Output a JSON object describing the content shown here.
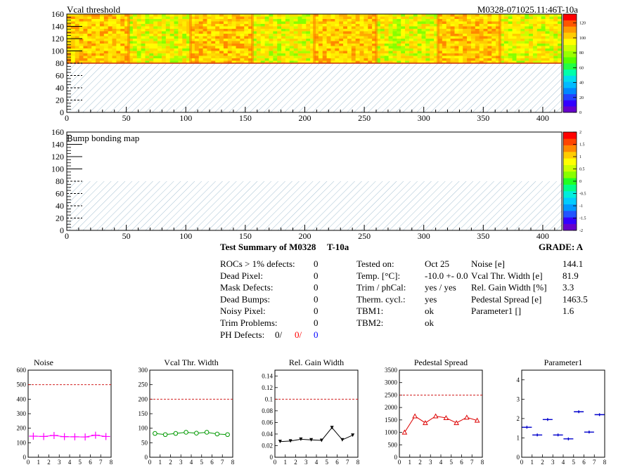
{
  "header": {
    "title": "Vcal threshold",
    "module_id": "M0328-071025.11:46T-10a"
  },
  "maps": [
    {
      "title": "Vcal threshold",
      "x_ticks": [
        "0",
        "50",
        "100",
        "150",
        "200",
        "250",
        "300",
        "350",
        "400"
      ],
      "y_ticks": [
        "0",
        "20",
        "40",
        "60",
        "80",
        "100",
        "120",
        "140",
        "160"
      ],
      "palette_labels": [
        "0",
        "20",
        "40",
        "60",
        "80",
        "100",
        "120"
      ]
    },
    {
      "title": "Bump bonding map",
      "x_ticks": [
        "0",
        "50",
        "100",
        "150",
        "200",
        "250",
        "300",
        "350",
        "400"
      ],
      "y_ticks": [
        "0",
        "20",
        "40",
        "60",
        "80",
        "100",
        "120",
        "140",
        "160"
      ],
      "palette_labels": [
        "-2",
        "-1.5",
        "-1",
        "-0.5",
        "0",
        "0.5",
        "1",
        "1.5",
        "2"
      ]
    }
  ],
  "summary": {
    "title": "Test Summary of M0328",
    "temp_tag": "T-10a",
    "grade_label": "GRADE:  A",
    "defects": [
      {
        "label": "ROCs > 1% defects:",
        "value": "0"
      },
      {
        "label": "Dead Pixel:",
        "value": "0"
      },
      {
        "label": "Mask Defects:",
        "value": "0"
      },
      {
        "label": "Dead Bumps:",
        "value": "0"
      },
      {
        "label": "Noisy Pixel:",
        "value": "0"
      },
      {
        "label": "Trim Problems:",
        "value": "0"
      }
    ],
    "ph_defects": {
      "label": "PH Defects:",
      "v1": "0/",
      "v2": "0/",
      "v3": "0"
    },
    "conditions": [
      {
        "label": "Tested on:",
        "value": "Oct 25"
      },
      {
        "label": "Temp. [°C]:",
        "value": "-10.0 +- 0.0"
      },
      {
        "label": "Trim / phCal:",
        "value": "yes / yes"
      },
      {
        "label": "Therm. cycl.:",
        "value": "yes"
      },
      {
        "label": "TBM1:",
        "value": "ok"
      },
      {
        "label": "TBM2:",
        "value": "ok"
      }
    ],
    "results": [
      {
        "label": "Noise [e]",
        "value": "144.1"
      },
      {
        "label": "Vcal Thr. Width [e]",
        "value": "81.9"
      },
      {
        "label": "Rel. Gain Width [%]",
        "value": "3.3"
      },
      {
        "label": "Pedestal Spread [e]",
        "value": "1463.5"
      },
      {
        "label": "Parameter1 []",
        "value": "1.6"
      }
    ]
  },
  "chart_data": [
    {
      "type": "line",
      "title": "Noise",
      "x": [
        0.5,
        1.5,
        2.5,
        3.5,
        4.5,
        5.5,
        6.5,
        7.5
      ],
      "values": [
        145,
        143,
        150,
        142,
        141,
        140,
        152,
        143
      ],
      "ylim": [
        0,
        600
      ],
      "threshold": 500,
      "y_ticks": [
        "0",
        "100",
        "200",
        "300",
        "400",
        "500",
        "600"
      ],
      "x_ticks": [
        "0",
        "1",
        "2",
        "3",
        "4",
        "5",
        "6",
        "7",
        "8"
      ],
      "color": "#ff00ff",
      "marker": "plus"
    },
    {
      "type": "line",
      "title": "Vcal Thr. Width",
      "x": [
        0.5,
        1.5,
        2.5,
        3.5,
        4.5,
        5.5,
        6.5,
        7.5
      ],
      "values": [
        82,
        78,
        82,
        86,
        83,
        86,
        80,
        78
      ],
      "ylim": [
        0,
        300
      ],
      "threshold": 200,
      "y_ticks": [
        "0",
        "50",
        "100",
        "150",
        "200",
        "250",
        "300"
      ],
      "x_ticks": [
        "0",
        "1",
        "2",
        "3",
        "4",
        "5",
        "6",
        "7",
        "8"
      ],
      "color": "#009900",
      "marker": "circle"
    },
    {
      "type": "line",
      "title": "Rel. Gain Width",
      "x": [
        0.5,
        1.5,
        2.5,
        3.5,
        4.5,
        5.5,
        6.5,
        7.5
      ],
      "values": [
        0.027,
        0.028,
        0.031,
        0.03,
        0.029,
        0.051,
        0.03,
        0.038
      ],
      "ylim": [
        0,
        0.15
      ],
      "threshold": 0.1,
      "y_ticks": [
        "0",
        "0.02",
        "0.04",
        "0.06",
        "0.08",
        "0.1",
        "0.12",
        "0.14"
      ],
      "y_tick_vals": [
        0,
        0.02,
        0.04,
        0.06,
        0.08,
        0.1,
        0.12,
        0.14
      ],
      "x_ticks": [
        "0",
        "1",
        "2",
        "3",
        "4",
        "5",
        "6",
        "7",
        "8"
      ],
      "color": "#000000",
      "marker": "triangle-down"
    },
    {
      "type": "line",
      "title": "Pedestal Spread",
      "x": [
        0.5,
        1.5,
        2.5,
        3.5,
        4.5,
        5.5,
        6.5,
        7.5
      ],
      "values": [
        1000,
        1650,
        1380,
        1650,
        1580,
        1380,
        1600,
        1480
      ],
      "ylim": [
        0,
        3500
      ],
      "threshold": 2500,
      "y_ticks": [
        "0",
        "500",
        "1000",
        "1500",
        "2000",
        "2500",
        "3000",
        "3500"
      ],
      "x_ticks": [
        "0",
        "1",
        "2",
        "3",
        "4",
        "5",
        "6",
        "7",
        "8"
      ],
      "color": "#dd0000",
      "marker": "triangle-up"
    },
    {
      "type": "scatter",
      "title": "Parameter1",
      "x": [
        0.5,
        1.5,
        2.5,
        3.5,
        4.5,
        5.5,
        6.5,
        7.5
      ],
      "values": [
        1.55,
        1.15,
        1.95,
        1.15,
        0.95,
        2.35,
        1.3,
        2.2
      ],
      "ylim": [
        0,
        4.5
      ],
      "y_ticks": [
        "0",
        "1",
        "2",
        "3",
        "4"
      ],
      "x_ticks": [
        "0",
        "1",
        "2",
        "3",
        "4",
        "5",
        "6",
        "7",
        "8"
      ],
      "color": "#0000cc",
      "marker": "hbar"
    }
  ]
}
